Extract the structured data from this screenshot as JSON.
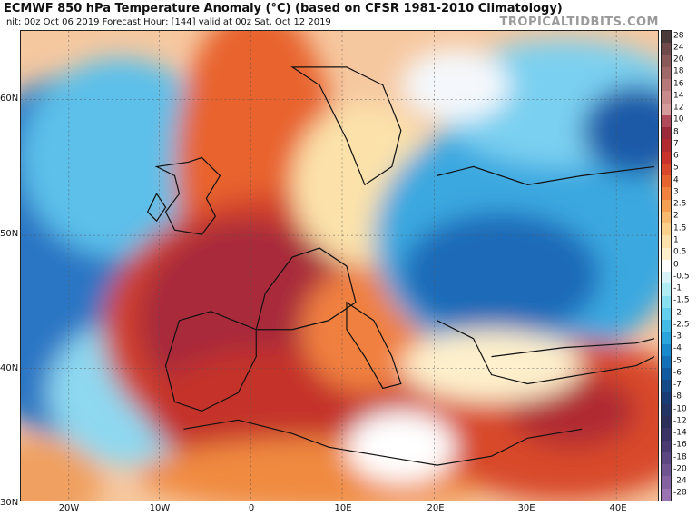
{
  "header": {
    "title": "ECMWF 850 hPa Temperature Anomaly (°C) (based on CFSR 1981-2010 Climatology)",
    "subtitle": "Init: 00z Oct 06 2019   Forecast Hour: [144]   valid at 00z Sat, Oct 12 2019",
    "brand": "TROPICALTIDBITS.COM"
  },
  "map": {
    "lat_labels": [
      "60N",
      "50N",
      "40N",
      "30N"
    ],
    "lon_labels": [
      "20W",
      "10W",
      "0",
      "10E",
      "20E",
      "30E",
      "40E"
    ]
  },
  "colorbar": {
    "labels": [
      "28",
      "24",
      "20",
      "18",
      "16",
      "14",
      "12",
      "10",
      "8",
      "7",
      "6",
      "5",
      "4",
      "3",
      "2.5",
      "2",
      "1.5",
      "1",
      "0.5",
      "0",
      "-0.5",
      "-1",
      "-1.5",
      "-2",
      "-2.5",
      "-3",
      "-4",
      "-5",
      "-6",
      "-7",
      "-8",
      "-10",
      "-12",
      "-14",
      "-16",
      "-18",
      "-20",
      "-24",
      "-28"
    ],
    "colors": [
      "#4a3a3a",
      "#6e4a4a",
      "#8a5a5a",
      "#a06868",
      "#b67878",
      "#c88a8a",
      "#d59a9a",
      "#b04a5a",
      "#9a2a3a",
      "#b02a30",
      "#c8322a",
      "#d8482a",
      "#e8642e",
      "#f0823e",
      "#f4a052",
      "#f8ba6e",
      "#fad08a",
      "#fce2aa",
      "#fef0cc",
      "#ffffff",
      "#d8f4f8",
      "#b0ecf4",
      "#88e0f0",
      "#62d0ec",
      "#42bce6",
      "#2aa4dc",
      "#1a88cc",
      "#1470b8",
      "#125aa0",
      "#144a88",
      "#1a3c74",
      "#223464",
      "#2a2e58",
      "#3a3264",
      "#4a3a72",
      "#5c4682",
      "#705492",
      "#8462a2",
      "#9a74b2"
    ]
  }
}
